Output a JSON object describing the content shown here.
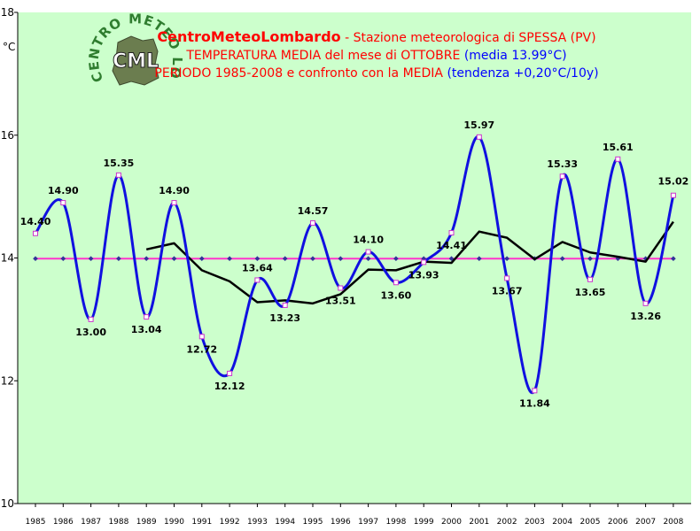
{
  "header": {
    "brand": "CentroMeteoLombardo",
    "line1_rest": " - Stazione meteorologica di SPESSA (PV)",
    "line2_main": "TEMPERATURA MEDIA del mese di OTTOBRE ",
    "line2_extra": "(media 13.99°C)",
    "line3_main": "PERIODO 1985-2008 e confronto con la MEDIA ",
    "line3_extra": "(tendenza +0,20°C/10y)"
  },
  "logo": {
    "ring_text": "CENTRO METEO LOMBARDO",
    "badge": "CML"
  },
  "colors": {
    "plot_bg": "#ccffcc",
    "series_main": "#1010e0",
    "series_trend": "#000000",
    "mean_line": "#ff33cc",
    "labels": "#000000",
    "brand": "#ff0000",
    "title_red": "#ff0000",
    "title_blue": "#0000ff"
  },
  "chart_data": {
    "type": "line",
    "ylabel": "°C",
    "ylim": [
      10,
      18
    ],
    "yticks": [
      10,
      12,
      14,
      16,
      18
    ],
    "grid": false,
    "categories": [
      "1985",
      "1986",
      "1987",
      "1988",
      "1989",
      "1990",
      "1991",
      "1992",
      "1993",
      "1994",
      "1995",
      "1996",
      "1997",
      "1998",
      "1999",
      "2000",
      "2001",
      "2002",
      "2003",
      "2004",
      "2005",
      "2006",
      "2007",
      "2008"
    ],
    "series": [
      {
        "role": "annual",
        "style": "smooth-line-with-markers",
        "values": [
          14.4,
          14.9,
          13.0,
          15.35,
          13.04,
          14.9,
          12.72,
          12.12,
          13.64,
          13.23,
          14.57,
          13.51,
          14.1,
          13.6,
          13.93,
          14.41,
          15.97,
          13.67,
          11.84,
          15.33,
          13.65,
          15.61,
          13.26,
          15.02
        ],
        "labels": [
          "14.40",
          "14.90",
          "13.00",
          "15.35",
          "13.04",
          "14.90",
          "12.72",
          "12.12",
          "13.64",
          "13.23",
          "14.57",
          "13.51",
          "14.10",
          "13.60",
          "13.93",
          "14.41",
          "15.97",
          "13.67",
          "11.84",
          "15.33",
          "13.65",
          "15.61",
          "13.26",
          "15.02"
        ]
      },
      {
        "role": "moving-average",
        "style": "line",
        "values": [
          null,
          null,
          null,
          null,
          14.14,
          14.24,
          13.8,
          13.62,
          13.28,
          13.31,
          13.26,
          13.41,
          13.81,
          13.8,
          13.94,
          13.92,
          14.43,
          14.33,
          13.98,
          14.26,
          14.09,
          14.02,
          13.94,
          14.59
        ]
      },
      {
        "role": "mean",
        "style": "line-with-markers",
        "values": [
          13.99,
          13.99,
          13.99,
          13.99,
          13.99,
          13.99,
          13.99,
          13.99,
          13.99,
          13.99,
          13.99,
          13.99,
          13.99,
          13.99,
          13.99,
          13.99,
          13.99,
          13.99,
          13.99,
          13.99,
          13.99,
          13.99,
          13.99,
          13.99
        ]
      }
    ]
  }
}
